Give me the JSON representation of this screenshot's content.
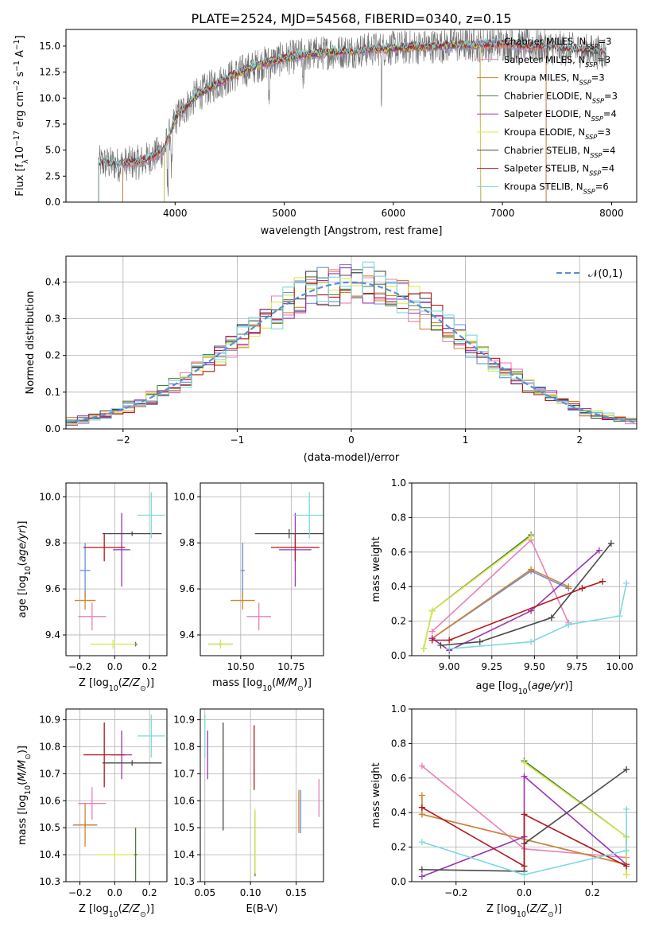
{
  "figure": {
    "title": "PLATE=2524, MJD=54568, FIBERID=0340, z=0.15"
  },
  "colors": {
    "Chabrier MILES": "#6b8fd6",
    "Salpeter MILES": "#e87fb8",
    "Kroupa MILES": "#d2832e",
    "Chabrier ELODIE": "#4b7e3a",
    "Salpeter ELODIE": "#9b34b5",
    "Kroupa ELODIE": "#d9e84a",
    "Chabrier STELIB": "#4a4a4a",
    "Salpeter STELIB": "#b2181b",
    "Kroupa STELIB": "#7ed9dc",
    "data": "#707070",
    "normal": "#5b8ed6"
  },
  "chart_data": [
    {
      "id": "spectrum",
      "type": "line",
      "xlabel": "wavelength [Angstrom, rest frame]",
      "ylabel": "Flux [f_λ 10^-17 erg cm^-2 s^-1 A^-1]",
      "xlim": [
        3000,
        8230
      ],
      "ylim": [
        0,
        16.6
      ],
      "xticks": [
        4000,
        5000,
        6000,
        7000,
        8000
      ],
      "yticks": [
        0.0,
        2.5,
        5.0,
        7.5,
        10.0,
        12.5,
        15.0
      ],
      "legend_position": "upper-right",
      "legend": [
        "Chabrier MILES, N_SSP=3",
        "Salpeter MILES, N_SSP=3",
        "Kroupa MILES, N_SSP=3",
        "Chabrier ELODIE, N_SSP=3",
        "Salpeter ELODIE, N_SSP=4",
        "Kroupa ELODIE, N_SSP=3",
        "Chabrier STELIB, N_SSP=4",
        "Salpeter STELIB, N_SSP=4",
        "Kroupa STELIB, N_SSP=6"
      ],
      "continuum": {
        "x": [
          3300,
          3500,
          3700,
          3900,
          4000,
          4200,
          4400,
          4600,
          4800,
          5000,
          5200,
          5400,
          5600,
          5800,
          6000,
          6200,
          6400,
          6600,
          6800,
          7000,
          7200,
          7400,
          7600,
          7800,
          8000,
          8230
        ],
        "y": [
          3.8,
          3.6,
          3.9,
          5.0,
          8.0,
          10.3,
          11.5,
          12.5,
          13.3,
          13.8,
          14.2,
          14.4,
          14.5,
          14.7,
          14.8,
          14.9,
          15.0,
          15.1,
          15.1,
          15.2,
          15.0,
          14.9,
          14.7,
          14.5,
          14.3,
          13.2
        ]
      }
    },
    {
      "id": "residuals",
      "type": "bar",
      "xlabel": "(data-model)/error",
      "ylabel": "Normed distribution",
      "xlim": [
        -2.5,
        2.5
      ],
      "ylim": [
        0,
        0.47
      ],
      "xticks": [
        -2,
        -1,
        0,
        1,
        2
      ],
      "yticks": [
        0.0,
        0.1,
        0.2,
        0.3,
        0.4
      ],
      "grid": true,
      "legend_position": "upper-right",
      "legend": [
        "𝒩(0,1)"
      ],
      "bin_width": 0.1,
      "bin_start": -2.5,
      "bins_count": 50
    },
    {
      "id": "age-vs-Z",
      "type": "scatter",
      "xlabel": "Z [log10(Z/Z⊙)]",
      "ylabel": "age  [log10(age/yr)]",
      "xlim": [
        -0.28,
        0.3
      ],
      "ylim": [
        9.31,
        10.06
      ],
      "xticks": [
        -0.2,
        0.0,
        0.2
      ],
      "yticks": [
        9.4,
        9.6,
        9.8,
        10.0
      ],
      "grid": true,
      "points": [
        {
          "model": "Chabrier MILES",
          "x": -0.17,
          "xerr": 0.03,
          "y": 9.68,
          "yerr": 0.12
        },
        {
          "model": "Salpeter MILES",
          "x": -0.13,
          "xerr": 0.08,
          "y": 9.48,
          "yerr": 0.06
        },
        {
          "model": "Kroupa MILES",
          "x": -0.17,
          "xerr": 0.06,
          "y": 9.55,
          "yerr": 0.04
        },
        {
          "model": "Chabrier ELODIE",
          "x": 0.12,
          "xerr": 0.01,
          "y": 9.36,
          "yerr": 0.01
        },
        {
          "model": "Salpeter ELODIE",
          "x": 0.04,
          "xerr": 0.05,
          "y": 9.77,
          "yerr": 0.16
        },
        {
          "model": "Kroupa ELODIE",
          "x": -0.01,
          "xerr": 0.13,
          "y": 9.36,
          "yerr": 0.02
        },
        {
          "model": "Chabrier STELIB",
          "x": 0.1,
          "xerr": 0.17,
          "y": 9.84,
          "yerr": 0.01
        },
        {
          "model": "Salpeter STELIB",
          "x": -0.06,
          "xerr": 0.12,
          "y": 9.78,
          "yerr": 0.06
        },
        {
          "model": "Kroupa STELIB",
          "x": 0.21,
          "xerr": 0.08,
          "y": 9.92,
          "yerr": 0.1
        }
      ]
    },
    {
      "id": "age-vs-mass",
      "type": "scatter",
      "xlabel": "mass [log10(M/M⊙)]",
      "xlim": [
        10.3,
        10.91
      ],
      "ylim": [
        9.31,
        10.06
      ],
      "xticks": [
        10.5,
        10.75
      ],
      "yticks": [
        9.4,
        9.6,
        9.8,
        10.0
      ],
      "grid": true,
      "points": [
        {
          "model": "Chabrier MILES",
          "x": 10.51,
          "xerr": 0.01,
          "y": 9.68,
          "yerr": 0.12
        },
        {
          "model": "Salpeter MILES",
          "x": 10.59,
          "xerr": 0.06,
          "y": 9.48,
          "yerr": 0.06
        },
        {
          "model": "Kroupa MILES",
          "x": 10.51,
          "xerr": 0.06,
          "y": 9.55,
          "yerr": 0.04
        },
        {
          "model": "Chabrier ELODIE",
          "x": 10.4,
          "xerr": 0.06,
          "y": 9.36,
          "yerr": 0.01
        },
        {
          "model": "Salpeter ELODIE",
          "x": 10.77,
          "xerr": 0.08,
          "y": 9.77,
          "yerr": 0.16
        },
        {
          "model": "Kroupa ELODIE",
          "x": 10.4,
          "xerr": 0.06,
          "y": 9.36,
          "yerr": 0.02
        },
        {
          "model": "Chabrier STELIB",
          "x": 10.74,
          "xerr": 0.17,
          "y": 9.84,
          "yerr": 0.02
        },
        {
          "model": "Salpeter STELIB",
          "x": 10.77,
          "xerr": 0.12,
          "y": 9.78,
          "yerr": 0.06
        },
        {
          "model": "Kroupa STELIB",
          "x": 10.84,
          "xerr": 0.08,
          "y": 9.92,
          "yerr": 0.1
        }
      ]
    },
    {
      "id": "weight-vs-age",
      "type": "line",
      "xlabel": "age  [log10(age/yr)]",
      "ylabel": "mass weight",
      "xlim": [
        8.78,
        10.1
      ],
      "ylim": [
        0,
        1
      ],
      "xticks": [
        9.0,
        9.25,
        9.5,
        9.75,
        10.0
      ],
      "yticks": [
        0.0,
        0.2,
        0.4,
        0.6,
        0.8,
        1.0
      ],
      "grid": true,
      "series": [
        {
          "model": "Chabrier MILES",
          "x": [
            8.9,
            9.48,
            9.7
          ],
          "y": [
            0.1,
            0.49,
            0.39
          ]
        },
        {
          "model": "Salpeter MILES",
          "x": [
            8.9,
            9.48,
            9.7
          ],
          "y": [
            0.14,
            0.67,
            0.19
          ]
        },
        {
          "model": "Kroupa MILES",
          "x": [
            8.9,
            9.48,
            9.7
          ],
          "y": [
            0.1,
            0.5,
            0.4
          ]
        },
        {
          "model": "Chabrier ELODIE",
          "x": [
            8.85,
            8.9,
            9.48
          ],
          "y": [
            0.04,
            0.26,
            0.7
          ]
        },
        {
          "model": "Salpeter ELODIE",
          "x": [
            8.9,
            9.0,
            9.48,
            9.88
          ],
          "y": [
            0.1,
            0.03,
            0.26,
            0.61
          ]
        },
        {
          "model": "Kroupa ELODIE",
          "x": [
            8.85,
            8.9,
            9.48
          ],
          "y": [
            0.04,
            0.26,
            0.69
          ]
        },
        {
          "model": "Chabrier STELIB",
          "x": [
            8.95,
            9.18,
            9.6,
            9.95
          ],
          "y": [
            0.06,
            0.08,
            0.22,
            0.65
          ]
        },
        {
          "model": "Salpeter STELIB",
          "x": [
            8.9,
            9.0,
            9.78,
            9.9
          ],
          "y": [
            0.09,
            0.09,
            0.39,
            0.43
          ]
        },
        {
          "model": "Kroupa STELIB",
          "x": [
            9.0,
            9.48,
            9.7,
            10.0,
            10.04
          ],
          "y": [
            0.04,
            0.08,
            0.18,
            0.23,
            0.42
          ]
        }
      ]
    },
    {
      "id": "mass-vs-Z",
      "type": "scatter",
      "xlabel": "Z [log10(Z/Z⊙)]",
      "ylabel": "mass [log10(M/M⊙)]",
      "xlim": [
        -0.28,
        0.3
      ],
      "ylim": [
        10.3,
        10.94
      ],
      "xticks": [
        -0.2,
        0.0,
        0.2
      ],
      "yticks": [
        10.3,
        10.4,
        10.5,
        10.6,
        10.7,
        10.8,
        10.9
      ],
      "grid": true,
      "points": [
        {
          "model": "Chabrier MILES",
          "x": -0.17,
          "xerr": 0.07,
          "y": 10.51,
          "yerr": 0.01
        },
        {
          "model": "Salpeter MILES",
          "x": -0.13,
          "xerr": 0.08,
          "y": 10.59,
          "yerr": 0.06
        },
        {
          "model": "Kroupa MILES",
          "x": -0.17,
          "xerr": 0.06,
          "y": 10.51,
          "yerr": 0.08
        },
        {
          "model": "Chabrier ELODIE",
          "x": 0.12,
          "xerr": 0.01,
          "y": 10.4,
          "yerr": 0.1
        },
        {
          "model": "Salpeter ELODIE",
          "x": 0.04,
          "xerr": 0.06,
          "y": 10.77,
          "yerr": 0.09
        },
        {
          "model": "Kroupa ELODIE",
          "x": 0.0,
          "xerr": 0.11,
          "y": 10.4,
          "yerr": 0.02
        },
        {
          "model": "Chabrier STELIB",
          "x": 0.1,
          "xerr": 0.17,
          "y": 10.74,
          "yerr": 0.01
        },
        {
          "model": "Salpeter STELIB",
          "x": -0.06,
          "xerr": 0.12,
          "y": 10.77,
          "yerr": 0.12
        },
        {
          "model": "Kroupa STELIB",
          "x": 0.21,
          "xerr": 0.08,
          "y": 10.84,
          "yerr": 0.08
        }
      ]
    },
    {
      "id": "mass-vs-ebv",
      "type": "scatter",
      "xlabel": "E(B-V)",
      "xlim": [
        0.045,
        0.18
      ],
      "ylim": [
        10.3,
        10.94
      ],
      "xticks": [
        0.05,
        0.1,
        0.15
      ],
      "yticks": [
        10.3,
        10.4,
        10.5,
        10.6,
        10.7,
        10.8,
        10.9
      ],
      "grid": true,
      "points": [
        {
          "model": "Chabrier MILES",
          "x": 0.155,
          "y": 10.56,
          "yerr": 0.08
        },
        {
          "model": "Salpeter MILES",
          "x": 0.175,
          "y": 10.61,
          "yerr": 0.07
        },
        {
          "model": "Kroupa MILES",
          "x": 0.153,
          "y": 10.56,
          "yerr": 0.08
        },
        {
          "model": "Chabrier ELODIE",
          "x": 0.105,
          "y": 10.44,
          "yerr": 0.12
        },
        {
          "model": "Salpeter ELODIE",
          "x": 0.053,
          "y": 10.77,
          "yerr": 0.09
        },
        {
          "model": "Kroupa ELODIE",
          "x": 0.105,
          "y": 10.45,
          "yerr": 0.12
        },
        {
          "model": "Chabrier STELIB",
          "x": 0.07,
          "y": 10.69,
          "yerr": 0.2
        },
        {
          "model": "Salpeter STELIB",
          "x": 0.104,
          "y": 10.76,
          "yerr": 0.12
        },
        {
          "model": "Kroupa STELIB",
          "x": 0.05,
          "y": 10.84,
          "yerr": 0.08
        }
      ]
    },
    {
      "id": "weight-vs-Z",
      "type": "line",
      "xlabel": "Z [log10(Z/Z⊙)]",
      "ylabel": "mass weight",
      "xlim": [
        -0.33,
        0.33
      ],
      "ylim": [
        0,
        1
      ],
      "xticks": [
        -0.2,
        0.0,
        0.2
      ],
      "yticks": [
        0.0,
        0.2,
        0.4,
        0.6,
        0.8,
        1.0
      ],
      "grid": true,
      "series": [
        {
          "model": "Chabrier MILES",
          "x": [
            -0.3,
            0.3
          ],
          "y": [
            0.39,
            0.1
          ]
        },
        {
          "model": "Salpeter MILES",
          "x": [
            -0.3,
            0.0,
            0.3
          ],
          "y": [
            0.67,
            0.19,
            0.14
          ]
        },
        {
          "model": "Kroupa MILES",
          "x": [
            -0.3,
            -0.3,
            0.3
          ],
          "y": [
            0.5,
            0.39,
            0.1
          ]
        },
        {
          "model": "Chabrier ELODIE",
          "x": [
            0.0,
            0.3,
            0.3
          ],
          "y": [
            0.7,
            0.26,
            0.04
          ]
        },
        {
          "model": "Salpeter ELODIE",
          "x": [
            -0.3,
            0.0,
            0.0,
            0.3
          ],
          "y": [
            0.03,
            0.26,
            0.61,
            0.1
          ]
        },
        {
          "model": "Kroupa ELODIE",
          "x": [
            0.0,
            0.3,
            0.3
          ],
          "y": [
            0.69,
            0.26,
            0.04
          ]
        },
        {
          "model": "Chabrier STELIB",
          "x": [
            -0.3,
            0.0,
            0.0,
            0.3
          ],
          "y": [
            0.07,
            0.06,
            0.22,
            0.65
          ]
        },
        {
          "model": "Salpeter STELIB",
          "x": [
            -0.3,
            0.0,
            0.0,
            0.3
          ],
          "y": [
            0.43,
            0.09,
            0.39,
            0.09
          ]
        },
        {
          "model": "Kroupa STELIB",
          "x": [
            -0.3,
            0.0,
            0.3,
            0.3
          ],
          "y": [
            0.23,
            0.04,
            0.18,
            0.42
          ]
        }
      ]
    }
  ]
}
